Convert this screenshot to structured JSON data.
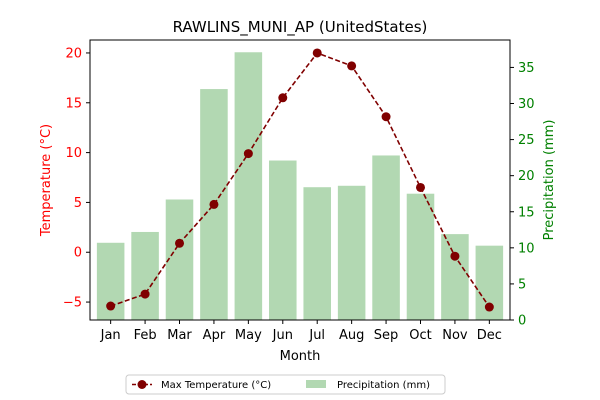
{
  "chart_data": {
    "type": "bar+line",
    "title": "RAWLINS_MUNI_AP (UnitedStates)",
    "xlabel": "Month",
    "categories": [
      "Jan",
      "Feb",
      "Mar",
      "Apr",
      "May",
      "Jun",
      "Jul",
      "Aug",
      "Sep",
      "Oct",
      "Nov",
      "Dec"
    ],
    "left_axis": {
      "label": "Temperature (°C)",
      "color": "#ff0000",
      "ylim": [
        -6.8,
        21.3
      ],
      "ticks": [
        -5,
        0,
        5,
        10,
        15,
        20
      ],
      "tick_labels": [
        "−5",
        "0",
        "5",
        "10",
        "15",
        "20"
      ]
    },
    "right_axis": {
      "label": "Precipitation (mm)",
      "color": "#008000",
      "ylim": [
        0,
        38.8
      ],
      "ticks": [
        0,
        5,
        10,
        15,
        20,
        25,
        30,
        35
      ],
      "tick_labels": [
        "0",
        "5",
        "10",
        "15",
        "20",
        "25",
        "30",
        "35"
      ]
    },
    "series": [
      {
        "name": "Max Temperature (°C)",
        "kind": "line",
        "axis": "left",
        "color": "#800000",
        "values": [
          -5.4,
          -4.2,
          0.9,
          4.8,
          9.9,
          15.5,
          20.0,
          18.7,
          13.6,
          6.5,
          -0.4,
          -5.5
        ]
      },
      {
        "name": "Precipitation (mm)",
        "kind": "bar",
        "axis": "right",
        "color": "#b2d8b2",
        "values": [
          10.7,
          12.2,
          16.7,
          32.0,
          37.1,
          22.1,
          18.4,
          18.6,
          22.8,
          17.5,
          11.9,
          10.3
        ]
      }
    ],
    "legend_position": "bottom-center",
    "grid": false
  }
}
